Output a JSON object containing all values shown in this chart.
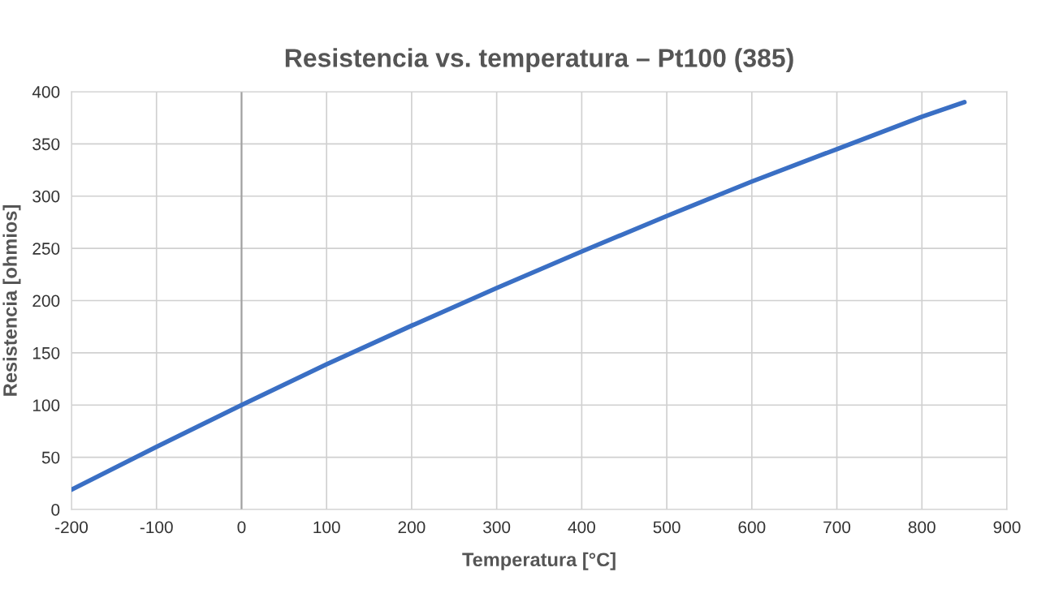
{
  "chart_data": {
    "type": "line",
    "title": "Resistencia vs. temperatura – Pt100 (385)",
    "xlabel": "Temperatura [°C]",
    "ylabel": "Resistencia [ohmios]",
    "x": [
      -200,
      -100,
      0,
      100,
      200,
      300,
      400,
      500,
      600,
      700,
      800,
      850
    ],
    "series": [
      {
        "color": "#3a6fc4",
        "values": [
          19,
          60,
          100,
          139,
          176,
          212,
          247,
          281,
          314,
          345,
          376,
          390
        ]
      }
    ],
    "xlim": [
      -200,
      900
    ],
    "xticks": [
      -200,
      -100,
      0,
      100,
      200,
      300,
      400,
      500,
      600,
      700,
      800,
      900
    ],
    "ylim": [
      0,
      400
    ],
    "yticks": [
      0,
      50,
      100,
      150,
      200,
      250,
      300,
      350,
      400
    ],
    "grid": true,
    "legend": false,
    "marker": "none",
    "line_style": "solid",
    "ref_lines": [
      {
        "axis": "x",
        "value": 0,
        "label": null,
        "color": "#a0a0a0"
      }
    ]
  }
}
